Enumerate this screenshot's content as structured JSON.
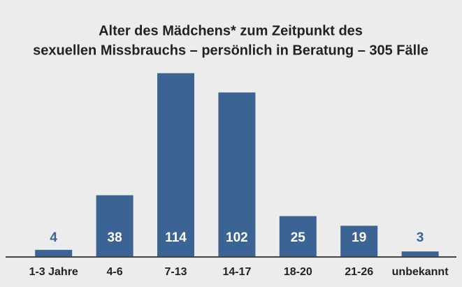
{
  "chart_data": {
    "type": "bar",
    "title": [
      "Alter des Mädchens* zum Zeitpunkt des",
      "sexuellen Missbrauchs – persönlich in Beratung – 305 Fälle"
    ],
    "categories": [
      "1-3 Jahre",
      "4-6",
      "7-13",
      "14-17",
      "18-20",
      "21-26",
      "unbekannt"
    ],
    "values": [
      4,
      38,
      114,
      102,
      25,
      19,
      3
    ],
    "color": "#3b6495"
  }
}
